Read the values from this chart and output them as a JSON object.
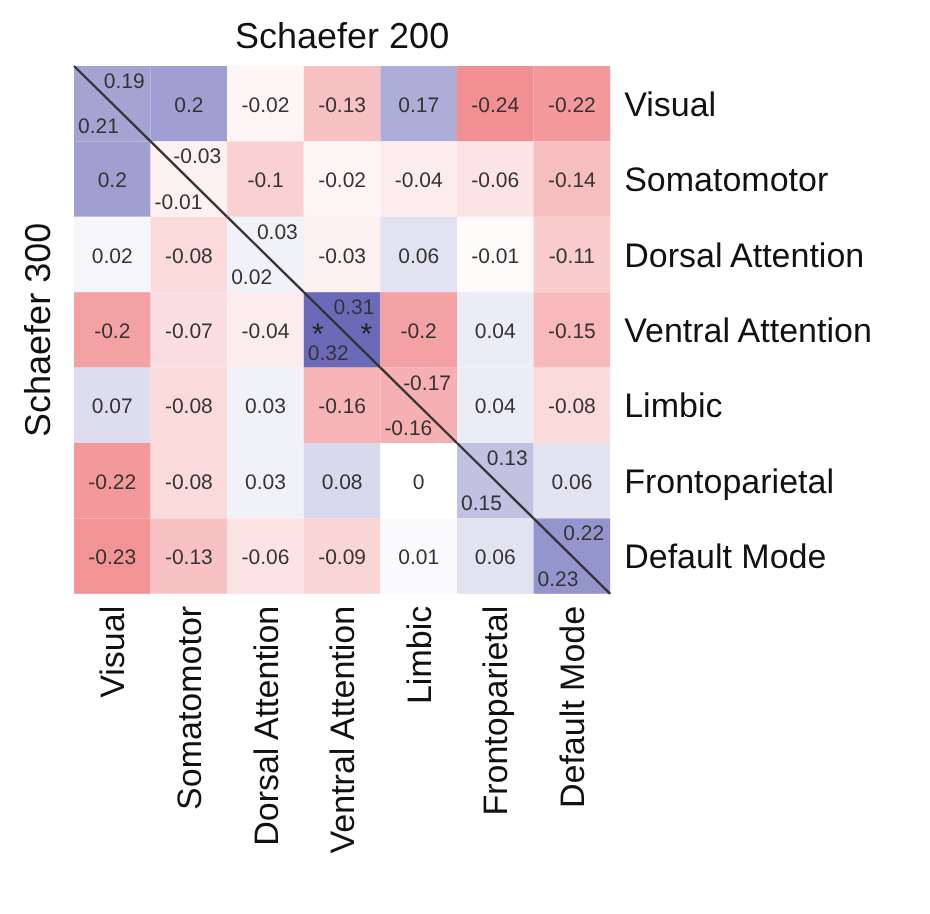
{
  "chart_data": {
    "type": "heatmap",
    "xlabel": "Schaefer 200",
    "ylabel": "Schaefer 300",
    "categories": [
      "Visual",
      "Somatomotor",
      "Dorsal Attention",
      "Ventral Attention",
      "Limbic",
      "Frontoparietal",
      "Default Mode"
    ],
    "y_categories": [
      "Visual",
      "Somatomotor",
      "Dorsal Attention",
      "Ventral Attention",
      "Limbic",
      "Frontoparietal",
      "Default Mode"
    ],
    "cells": [
      [
        0.19,
        0.2,
        -0.02,
        -0.13,
        0.17,
        -0.24,
        -0.22
      ],
      [
        0.2,
        -0.03,
        -0.1,
        -0.02,
        -0.04,
        -0.06,
        -0.14
      ],
      [
        0.02,
        -0.08,
        0.03,
        -0.03,
        0.06,
        -0.01,
        -0.11
      ],
      [
        -0.2,
        -0.07,
        -0.04,
        0.31,
        -0.2,
        0.04,
        -0.15
      ],
      [
        0.07,
        -0.08,
        0.03,
        -0.16,
        -0.17,
        0.04,
        -0.08
      ],
      [
        -0.22,
        -0.08,
        0.03,
        0.08,
        0,
        0.13,
        0.06
      ],
      [
        -0.23,
        -0.13,
        -0.06,
        -0.09,
        0.01,
        0.06,
        0.22
      ]
    ],
    "data_labels": true,
    "annotations": [
      "0.21",
      "-0.01",
      "0.02",
      "0.32",
      "-0.16",
      "0.15",
      "0.23",
      "*",
      "*"
    ]
  }
}
